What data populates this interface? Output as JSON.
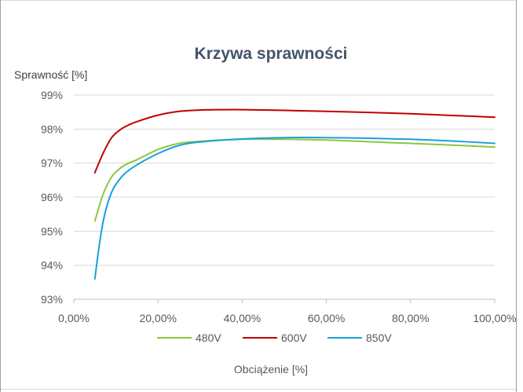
{
  "chart_data": {
    "type": "line",
    "title": "Krzywa sprawności",
    "ylabel": "Sprawność [%]",
    "xlabel": "Obciążenie [%]",
    "x_ticks": [
      "0,00%",
      "20,00%",
      "40,00%",
      "60,00%",
      "80,00%",
      "100,00%"
    ],
    "y_ticks": [
      "93%",
      "94%",
      "95%",
      "96%",
      "97%",
      "98%",
      "99%"
    ],
    "xlim": [
      0,
      100
    ],
    "ylim": [
      93,
      99
    ],
    "grid": "horizontal",
    "legend_position": "bottom",
    "series": [
      {
        "name": "480V",
        "color": "#8dc63f",
        "x": [
          5,
          7,
          9,
          11,
          13,
          15,
          20,
          25,
          30,
          40,
          50,
          60,
          70,
          80,
          90,
          100
        ],
        "y": [
          95.3,
          96.1,
          96.6,
          96.85,
          97.0,
          97.1,
          97.4,
          97.58,
          97.64,
          97.7,
          97.7,
          97.68,
          97.63,
          97.58,
          97.53,
          97.47
        ]
      },
      {
        "name": "600V",
        "color": "#c00000",
        "x": [
          5,
          7,
          9,
          11,
          13,
          15,
          20,
          25,
          30,
          35,
          40,
          50,
          60,
          70,
          80,
          90,
          100
        ],
        "y": [
          96.72,
          97.3,
          97.75,
          97.98,
          98.12,
          98.22,
          98.41,
          98.52,
          98.56,
          98.57,
          98.57,
          98.55,
          98.52,
          98.49,
          98.45,
          98.4,
          98.35
        ]
      },
      {
        "name": "850V",
        "color": "#1aa0dc",
        "x": [
          5,
          6,
          7,
          8,
          9,
          10,
          12,
          15,
          20,
          25,
          30,
          40,
          50,
          60,
          70,
          80,
          90,
          100
        ],
        "y": [
          93.6,
          94.55,
          95.3,
          95.8,
          96.15,
          96.38,
          96.68,
          96.95,
          97.28,
          97.52,
          97.62,
          97.71,
          97.75,
          97.75,
          97.73,
          97.7,
          97.65,
          97.58
        ]
      }
    ]
  }
}
